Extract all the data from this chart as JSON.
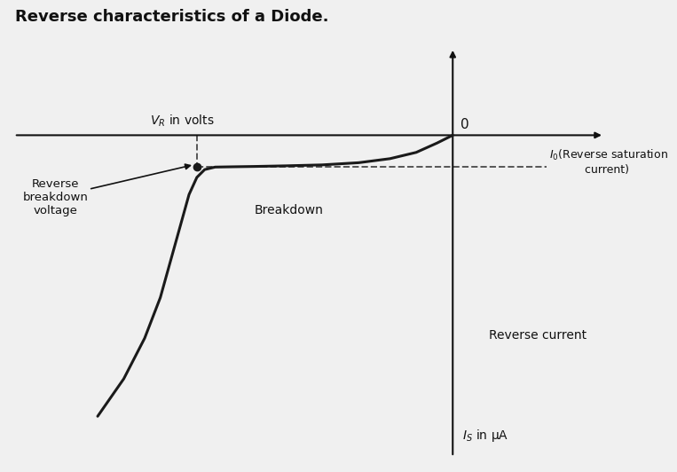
{
  "title": "Reverse characteristics of a Diode.",
  "title_fontsize": 13,
  "title_fontweight": "bold",
  "background_color": "#f0f0f0",
  "chart_bg": "#cdd8e0",
  "curve_color": "#1a1a1a",
  "dashed_color": "#555555",
  "axis_color": "#111111",
  "annotation_color": "#111111",
  "annotations": {
    "VR_label": "$V_R$ in volts",
    "IS_label": "$I_S$ in μA",
    "origin_label": "0",
    "I0_label": "$I_0$(Reverse saturation\n          current)",
    "breakdown_label": "Breakdown",
    "reverse_breakdown_label": "Reverse\nbreakdown\nvoltage",
    "reverse_current_label": "Reverse current"
  },
  "curve_x": [
    0.0,
    -0.3,
    -0.7,
    -1.2,
    -1.8,
    -2.5,
    -3.2,
    -3.8,
    -4.2,
    -4.55,
    -4.75,
    -4.9,
    -5.05,
    -5.2,
    -5.4,
    -5.6,
    -5.9,
    -6.3,
    -6.8
  ],
  "curve_y": [
    0.0,
    -0.25,
    -0.55,
    -0.75,
    -0.88,
    -0.95,
    -0.98,
    -1.0,
    -1.01,
    -1.02,
    -1.1,
    -1.35,
    -1.9,
    -2.8,
    -4.0,
    -5.2,
    -6.5,
    -7.8,
    -9.0
  ],
  "xlim": [
    -8.5,
    3.0
  ],
  "ylim": [
    -10.5,
    3.0
  ],
  "breakdown_x": -4.9,
  "saturation_y": -1.02,
  "dot_on_xaxis_x": -4.9
}
